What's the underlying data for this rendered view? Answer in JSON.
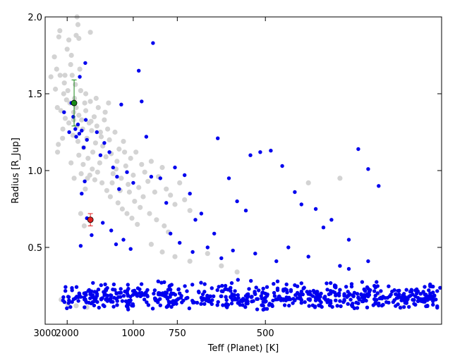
{
  "chart_data": {
    "type": "scatter",
    "title": "",
    "xlabel": "Teff (Planet) [K]",
    "ylabel": "Radius [R_Jup]",
    "x_scale": "reciprocal",
    "xlim": [
      3000,
      300
    ],
    "ylim": [
      0.0,
      2.0
    ],
    "x_ticks": [
      3000,
      2000,
      1000,
      750,
      500
    ],
    "x_tick_labels": [
      "3000",
      "2000",
      "1000",
      "750",
      "500"
    ],
    "y_ticks": [
      0.5,
      1.0,
      1.5,
      2.0
    ],
    "y_tick_labels": [
      "0.5",
      "1.0",
      "1.5",
      "2.0"
    ],
    "grid": false,
    "legend": "none",
    "colors": {
      "gray_series": "#d3d3d3",
      "blue_series": "#0000ee",
      "green_point": "#1a8a1a",
      "red_point": "#e02020"
    },
    "series": [
      {
        "color": "#d3d3d3",
        "points": [
          [
            2650,
            1.61
          ],
          [
            2480,
            1.74
          ],
          [
            2430,
            1.53
          ],
          [
            2350,
            1.41
          ],
          [
            2290,
            1.87
          ],
          [
            2240,
            1.62
          ],
          [
            2380,
            1.66
          ],
          [
            2250,
            1.91
          ],
          [
            2340,
            1.12
          ],
          [
            2310,
            1.17
          ],
          [
            2210,
            1.39
          ],
          [
            2140,
            1.27
          ],
          [
            2110,
            1.5
          ],
          [
            2090,
            1.57
          ],
          [
            2060,
            1.34
          ],
          [
            2020,
            1.46
          ],
          [
            1980,
            1.52
          ],
          [
            1950,
            1.31
          ],
          [
            1920,
            1.44
          ],
          [
            1900,
            1.69
          ],
          [
            1880,
            1.75
          ],
          [
            1860,
            1.62
          ],
          [
            1840,
            1.23
          ],
          [
            1820,
            1.38
          ],
          [
            1800,
            1.47
          ],
          [
            1780,
            1.56
          ],
          [
            1760,
            1.41
          ],
          [
            1740,
            1.29
          ],
          [
            1720,
            1.19
          ],
          [
            1700,
            1.36
          ],
          [
            1680,
            1.66
          ],
          [
            1660,
            1.52
          ],
          [
            1640,
            1.33
          ],
          [
            1620,
            1.27
          ],
          [
            1600,
            1.15
          ],
          [
            1580,
            1.44
          ],
          [
            1560,
            1.39
          ],
          [
            1540,
            1.21
          ],
          [
            1520,
            1.08
          ],
          [
            1500,
            1.31
          ],
          [
            1480,
            1.45
          ],
          [
            1460,
            1.26
          ],
          [
            1440,
            1.12
          ],
          [
            1420,
            1.35
          ],
          [
            1400,
            1.18
          ],
          [
            1380,
            1.29
          ],
          [
            1360,
            1.41
          ],
          [
            1340,
            1.05
          ],
          [
            1320,
            1.22
          ],
          [
            1300,
            1.16
          ],
          [
            1280,
            1.33
          ],
          [
            1260,
            1.09
          ],
          [
            1240,
            1.27
          ],
          [
            1220,
            1.2
          ],
          [
            1200,
            1.11
          ],
          [
            1180,
            0.98
          ],
          [
            1160,
            1.25
          ],
          [
            1140,
            1.06
          ],
          [
            1120,
            1.14
          ],
          [
            1100,
            0.95
          ],
          [
            1080,
            1.19
          ],
          [
            1060,
            1.03
          ],
          [
            1040,
            0.91
          ],
          [
            1020,
            1.08
          ],
          [
            1000,
            0.97
          ],
          [
            980,
            1.12
          ],
          [
            960,
            0.89
          ],
          [
            940,
            1.04
          ],
          [
            920,
            0.99
          ],
          [
            900,
            0.93
          ],
          [
            880,
            1.06
          ],
          [
            860,
            0.86
          ],
          [
            840,
            0.96
          ],
          [
            820,
            1.02
          ],
          [
            800,
            0.88
          ],
          [
            780,
            0.84
          ],
          [
            760,
            0.78
          ],
          [
            740,
            0.92
          ],
          [
            720,
            0.81
          ],
          [
            700,
            0.74
          ],
          [
            2150,
            1.21
          ],
          [
            2070,
            1.62
          ],
          [
            2000,
            1.79
          ],
          [
            1950,
            1.85
          ],
          [
            1700,
            1.86
          ],
          [
            1720,
            1.95
          ],
          [
            1740,
            2.0
          ],
          [
            1480,
            1.9
          ],
          [
            1890,
            1.05
          ],
          [
            1810,
            0.95
          ],
          [
            1660,
            0.72
          ],
          [
            1590,
            0.64
          ],
          [
            1760,
            1.88
          ],
          [
            1820,
            1.33
          ],
          [
            1560,
            1.5
          ],
          [
            1470,
            1.32
          ],
          [
            1390,
            1.47
          ],
          [
            1330,
            1.25
          ],
          [
            1270,
            1.38
          ],
          [
            1230,
            1.44
          ],
          [
            1190,
            0.92
          ],
          [
            1150,
            1.01
          ],
          [
            1110,
            0.87
          ],
          [
            1070,
            1.12
          ],
          [
            1030,
            0.86
          ],
          [
            990,
            0.8
          ],
          [
            950,
            0.76
          ],
          [
            930,
            0.83
          ],
          [
            890,
            0.72
          ],
          [
            850,
            0.68
          ],
          [
            810,
            0.64
          ],
          [
            790,
            0.6
          ],
          [
            1700,
            1.1
          ],
          [
            1650,
            0.98
          ],
          [
            1610,
            1.04
          ],
          [
            1570,
            0.88
          ],
          [
            1530,
            0.95
          ],
          [
            1490,
            0.97
          ],
          [
            1450,
            1.01
          ],
          [
            1410,
            0.94
          ],
          [
            1370,
            0.99
          ],
          [
            1310,
            0.92
          ],
          [
            1250,
            0.87
          ],
          [
            1210,
            0.83
          ],
          [
            1130,
            0.79
          ],
          [
            1090,
            0.75
          ],
          [
            1050,
            0.72
          ],
          [
            1010,
            0.69
          ],
          [
            970,
            0.65
          ],
          [
            880,
            0.52
          ],
          [
            820,
            0.47
          ],
          [
            760,
            0.44
          ],
          [
            700,
            0.41
          ],
          [
            640,
            0.46
          ],
          [
            600,
            0.38
          ],
          [
            560,
            0.34
          ],
          [
            2200,
            0.16
          ],
          [
            1980,
            0.13
          ],
          [
            1760,
            0.12
          ],
          [
            1540,
            0.11
          ],
          [
            430,
            0.92
          ],
          [
            390,
            0.95
          ],
          [
            350,
            0.2
          ],
          [
            330,
            0.11
          ]
        ]
      },
      {
        "color": "#0000ee",
        "points": [
          [
            2100,
            1.38
          ],
          [
            1940,
            1.25
          ],
          [
            1880,
            1.44
          ],
          [
            1830,
            1.35
          ],
          [
            1780,
            1.27
          ],
          [
            1760,
            1.22
          ],
          [
            1720,
            1.3
          ],
          [
            1690,
            1.24
          ],
          [
            1640,
            1.26
          ],
          [
            1600,
            1.15
          ],
          [
            1560,
            1.33
          ],
          [
            1540,
            1.2
          ],
          [
            1680,
            1.61
          ],
          [
            1570,
            1.7
          ],
          [
            1380,
            1.25
          ],
          [
            1330,
            1.1
          ],
          [
            1280,
            1.18
          ],
          [
            1220,
            1.12
          ],
          [
            1180,
            1.02
          ],
          [
            1140,
            0.96
          ],
          [
            1120,
            0.88
          ],
          [
            1100,
            1.43
          ],
          [
            1050,
            0.99
          ],
          [
            1000,
            0.92
          ],
          [
            960,
            1.65
          ],
          [
            940,
            1.45
          ],
          [
            910,
            1.22
          ],
          [
            880,
            0.96
          ],
          [
            870,
            1.83
          ],
          [
            830,
            0.95
          ],
          [
            800,
            0.79
          ],
          [
            760,
            1.02
          ],
          [
            720,
            0.97
          ],
          [
            700,
            0.85
          ],
          [
            680,
            0.68
          ],
          [
            660,
            0.72
          ],
          [
            620,
            0.59
          ],
          [
            610,
            1.21
          ],
          [
            580,
            0.95
          ],
          [
            560,
            0.8
          ],
          [
            540,
            0.74
          ],
          [
            530,
            1.1
          ],
          [
            510,
            1.12
          ],
          [
            490,
            1.13
          ],
          [
            470,
            1.03
          ],
          [
            450,
            0.86
          ],
          [
            440,
            0.78
          ],
          [
            420,
            0.75
          ],
          [
            410,
            0.63
          ],
          [
            400,
            0.68
          ],
          [
            380,
            0.55
          ],
          [
            370,
            1.14
          ],
          [
            360,
            1.01
          ],
          [
            350,
            0.9
          ],
          [
            1640,
            0.85
          ],
          [
            1580,
            0.93
          ],
          [
            1460,
            0.58
          ],
          [
            1660,
            0.51
          ],
          [
            1540,
            0.69
          ],
          [
            1300,
            0.66
          ],
          [
            1200,
            0.61
          ],
          [
            1150,
            0.52
          ],
          [
            1080,
            0.55
          ],
          [
            1020,
            0.49
          ],
          [
            780,
            0.59
          ],
          [
            740,
            0.53
          ],
          [
            690,
            0.47
          ],
          [
            640,
            0.5
          ],
          [
            600,
            0.43
          ],
          [
            570,
            0.48
          ],
          [
            520,
            0.46
          ],
          [
            480,
            0.41
          ],
          [
            460,
            0.5
          ],
          [
            430,
            0.44
          ],
          [
            390,
            0.38
          ],
          [
            380,
            0.36
          ],
          [
            360,
            0.41
          ]
        ]
      },
      {
        "color": "#0000ee",
        "points": []
      }
    ],
    "highlighted_points": [
      {
        "color": "#1a8a1a",
        "x": 1810,
        "y": 1.44,
        "y_err": [
          1.29,
          1.59
        ]
      },
      {
        "color": "#e02020",
        "x": 1480,
        "y": 0.68,
        "y_err": [
          0.64,
          0.72
        ]
      }
    ],
    "blue_cluster": {
      "note_free": true,
      "x_range": [
        2160,
        300
      ],
      "y_range": [
        0.02,
        0.36
      ],
      "count": 650
    }
  }
}
